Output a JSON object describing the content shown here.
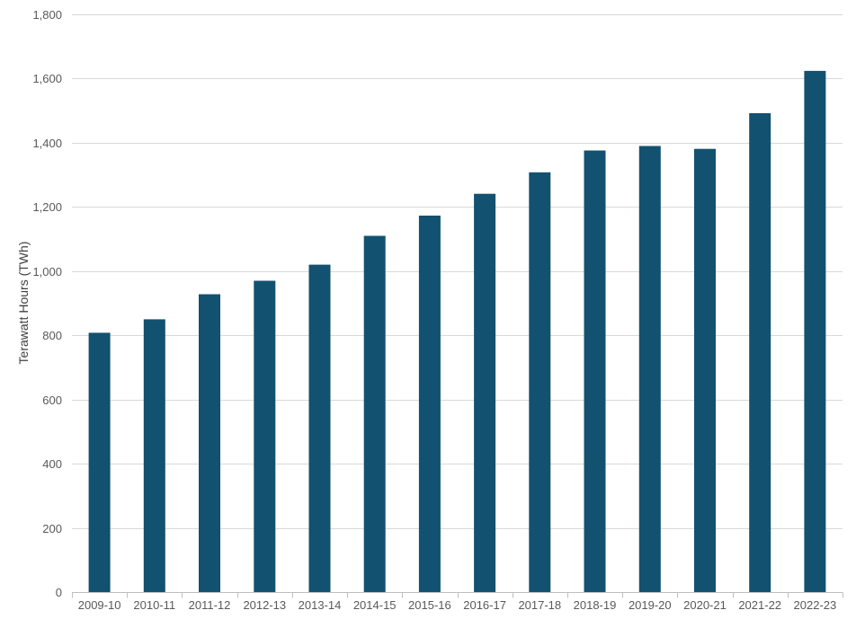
{
  "chart_data": {
    "type": "bar",
    "title": "",
    "xlabel": "",
    "ylabel": "Terawatt Hours (TWh)",
    "ylim": [
      0,
      1800
    ],
    "y_ticks": [
      0,
      200,
      400,
      600,
      800,
      1000,
      1200,
      1400,
      1600,
      1800
    ],
    "y_tick_labels": [
      "0",
      "200",
      "400",
      "600",
      "800",
      "1,000",
      "1,200",
      "1,400",
      "1,600",
      "1,800"
    ],
    "categories": [
      "2009-10",
      "2010-11",
      "2011-12",
      "2012-13",
      "2013-14",
      "2014-15",
      "2015-16",
      "2016-17",
      "2017-18",
      "2018-19",
      "2019-20",
      "2020-21",
      "2021-22",
      "2022-23"
    ],
    "series": [
      {
        "values": [
          808,
          850,
          928,
          970,
          1020,
          1110,
          1173,
          1241,
          1308,
          1376,
          1390,
          1381,
          1492,
          1624
        ],
        "color": "#135170"
      }
    ],
    "grid": true,
    "legend": "none"
  }
}
